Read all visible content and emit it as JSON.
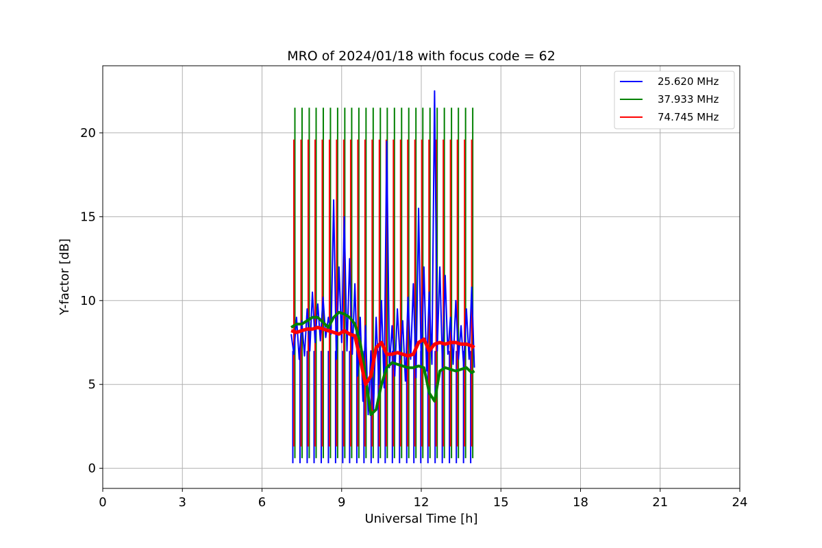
{
  "chart_data": {
    "type": "line",
    "title": "MRO of 2024/01/18 with focus code = 62",
    "xlabel": "Universal Time [h]",
    "ylabel": "Y-factor [dB]",
    "xlim": [
      0,
      24
    ],
    "ylim": [
      -1.2,
      24.0
    ],
    "xticks": [
      0,
      3,
      6,
      9,
      12,
      15,
      18,
      21,
      24
    ],
    "yticks": [
      0,
      5,
      10,
      15,
      20
    ],
    "grid": true,
    "legend_position": "top-right",
    "series": [
      {
        "name": "25.620 MHz",
        "color": "#0000ff",
        "x": [
          7.1,
          7.2,
          7.3,
          7.4,
          7.5,
          7.6,
          7.7,
          7.8,
          7.9,
          8.0,
          8.1,
          8.2,
          8.3,
          8.4,
          8.5,
          8.6,
          8.7,
          8.8,
          8.9,
          9.0,
          9.1,
          9.2,
          9.3,
          9.4,
          9.5,
          9.6,
          9.7,
          9.8,
          9.9,
          10.0,
          10.1,
          10.2,
          10.3,
          10.4,
          10.5,
          10.6,
          10.7,
          10.8,
          10.9,
          11.0,
          11.1,
          11.2,
          11.3,
          11.4,
          11.5,
          11.6,
          11.7,
          11.8,
          11.9,
          12.0,
          12.1,
          12.2,
          12.3,
          12.4,
          12.5,
          12.6,
          12.7,
          12.8,
          12.9,
          13.0,
          13.1,
          13.2,
          13.3,
          13.4,
          13.5,
          13.6,
          13.7,
          13.8,
          13.9,
          14.0
        ],
        "y": [
          8.0,
          6.8,
          9.0,
          6.5,
          8.8,
          6.7,
          9.5,
          7.0,
          10.5,
          7.5,
          9.8,
          7.6,
          10.2,
          7.8,
          9.0,
          8.0,
          16.0,
          6.5,
          12.0,
          7.5,
          15.0,
          7.0,
          12.5,
          6.8,
          11.0,
          5.5,
          9.0,
          4.0,
          8.5,
          3.2,
          7.0,
          3.5,
          9.0,
          5.0,
          10.0,
          4.8,
          19.5,
          6.0,
          8.5,
          5.5,
          9.5,
          6.5,
          8.8,
          5.2,
          10.2,
          6.5,
          11.0,
          5.4,
          15.5,
          6.0,
          12.0,
          5.8,
          10.5,
          6.2,
          22.5,
          7.0,
          12.0,
          6.0,
          11.5,
          6.8,
          9.0,
          6.2,
          10.0,
          6.5,
          8.5,
          6.0,
          9.5,
          6.5,
          10.8,
          6.0
        ]
      },
      {
        "name": "37.933 MHz",
        "color": "#008000",
        "x": [
          7.1,
          7.3,
          7.5,
          7.7,
          7.9,
          8.1,
          8.3,
          8.5,
          8.7,
          8.9,
          9.1,
          9.3,
          9.5,
          9.7,
          9.9,
          10.1,
          10.3,
          10.5,
          10.7,
          10.9,
          11.1,
          11.3,
          11.5,
          11.7,
          11.9,
          12.1,
          12.3,
          12.5,
          12.7,
          12.9,
          13.1,
          13.3,
          13.5,
          13.7,
          13.9,
          14.0
        ],
        "y": [
          8.4,
          8.6,
          8.6,
          8.8,
          9.0,
          9.0,
          8.7,
          8.4,
          9.0,
          9.3,
          9.2,
          9.0,
          8.6,
          7.5,
          5.5,
          3.2,
          3.5,
          5.0,
          6.0,
          6.3,
          6.2,
          6.1,
          6.0,
          6.0,
          6.1,
          6.0,
          4.5,
          4.0,
          5.8,
          6.0,
          5.9,
          5.8,
          5.9,
          6.0,
          5.7,
          5.8
        ]
      },
      {
        "name": "74.745 MHz",
        "color": "#ff0000",
        "x": [
          7.1,
          7.3,
          7.5,
          7.7,
          7.9,
          8.1,
          8.3,
          8.5,
          8.7,
          8.9,
          9.1,
          9.3,
          9.5,
          9.7,
          9.9,
          10.1,
          10.3,
          10.5,
          10.7,
          10.9,
          11.1,
          11.3,
          11.5,
          11.7,
          11.9,
          12.1,
          12.3,
          12.5,
          12.7,
          12.9,
          13.1,
          13.3,
          13.5,
          13.7,
          13.9,
          14.0
        ],
        "y": [
          8.2,
          8.1,
          8.2,
          8.3,
          8.3,
          8.4,
          8.3,
          8.2,
          8.1,
          8.0,
          8.2,
          8.0,
          7.9,
          6.5,
          5.0,
          5.5,
          7.2,
          7.5,
          6.8,
          6.8,
          6.9,
          6.8,
          6.7,
          6.8,
          7.5,
          7.7,
          7.0,
          7.4,
          7.5,
          7.4,
          7.5,
          7.5,
          7.4,
          7.4,
          7.3,
          7.2
        ]
      }
    ],
    "calibration_spikes": {
      "x": [
        7.2,
        7.47,
        7.74,
        8.0,
        8.27,
        8.54,
        8.81,
        9.08,
        9.34,
        9.61,
        9.88,
        10.15,
        10.42,
        10.68,
        10.95,
        11.22,
        11.49,
        11.76,
        12.02,
        12.29,
        12.56,
        12.83,
        13.1,
        13.36,
        13.63,
        13.9
      ],
      "green_top": 21.5,
      "red_top": 19.6,
      "bottom": 0.3
    }
  }
}
